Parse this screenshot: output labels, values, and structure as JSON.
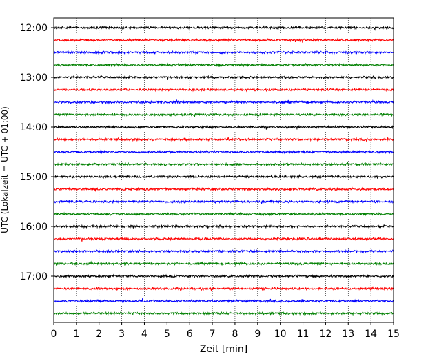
{
  "chart_data": {
    "type": "line",
    "title": "",
    "xlabel": "Zeit  [min]",
    "ylabel": "UTC (Lokalzeit = UTC + 01:00)",
    "xlim": [
      0,
      15
    ],
    "x_ticks": [
      "0",
      "1",
      "2",
      "3",
      "4",
      "5",
      "6",
      "7",
      "8",
      "9",
      "10",
      "11",
      "12",
      "13",
      "14",
      "15"
    ],
    "y_tick_labels": [
      "12:00",
      "13:00",
      "14:00",
      "15:00",
      "16:00",
      "17:00"
    ],
    "trace_start": "12:00",
    "trace_interval_min": 15,
    "trace_count": 24,
    "color_cycle": [
      "#000000",
      "#ff0000",
      "#0000ff",
      "#008000"
    ],
    "grid": "vertical dotted lines at each minute",
    "legend": "none"
  }
}
